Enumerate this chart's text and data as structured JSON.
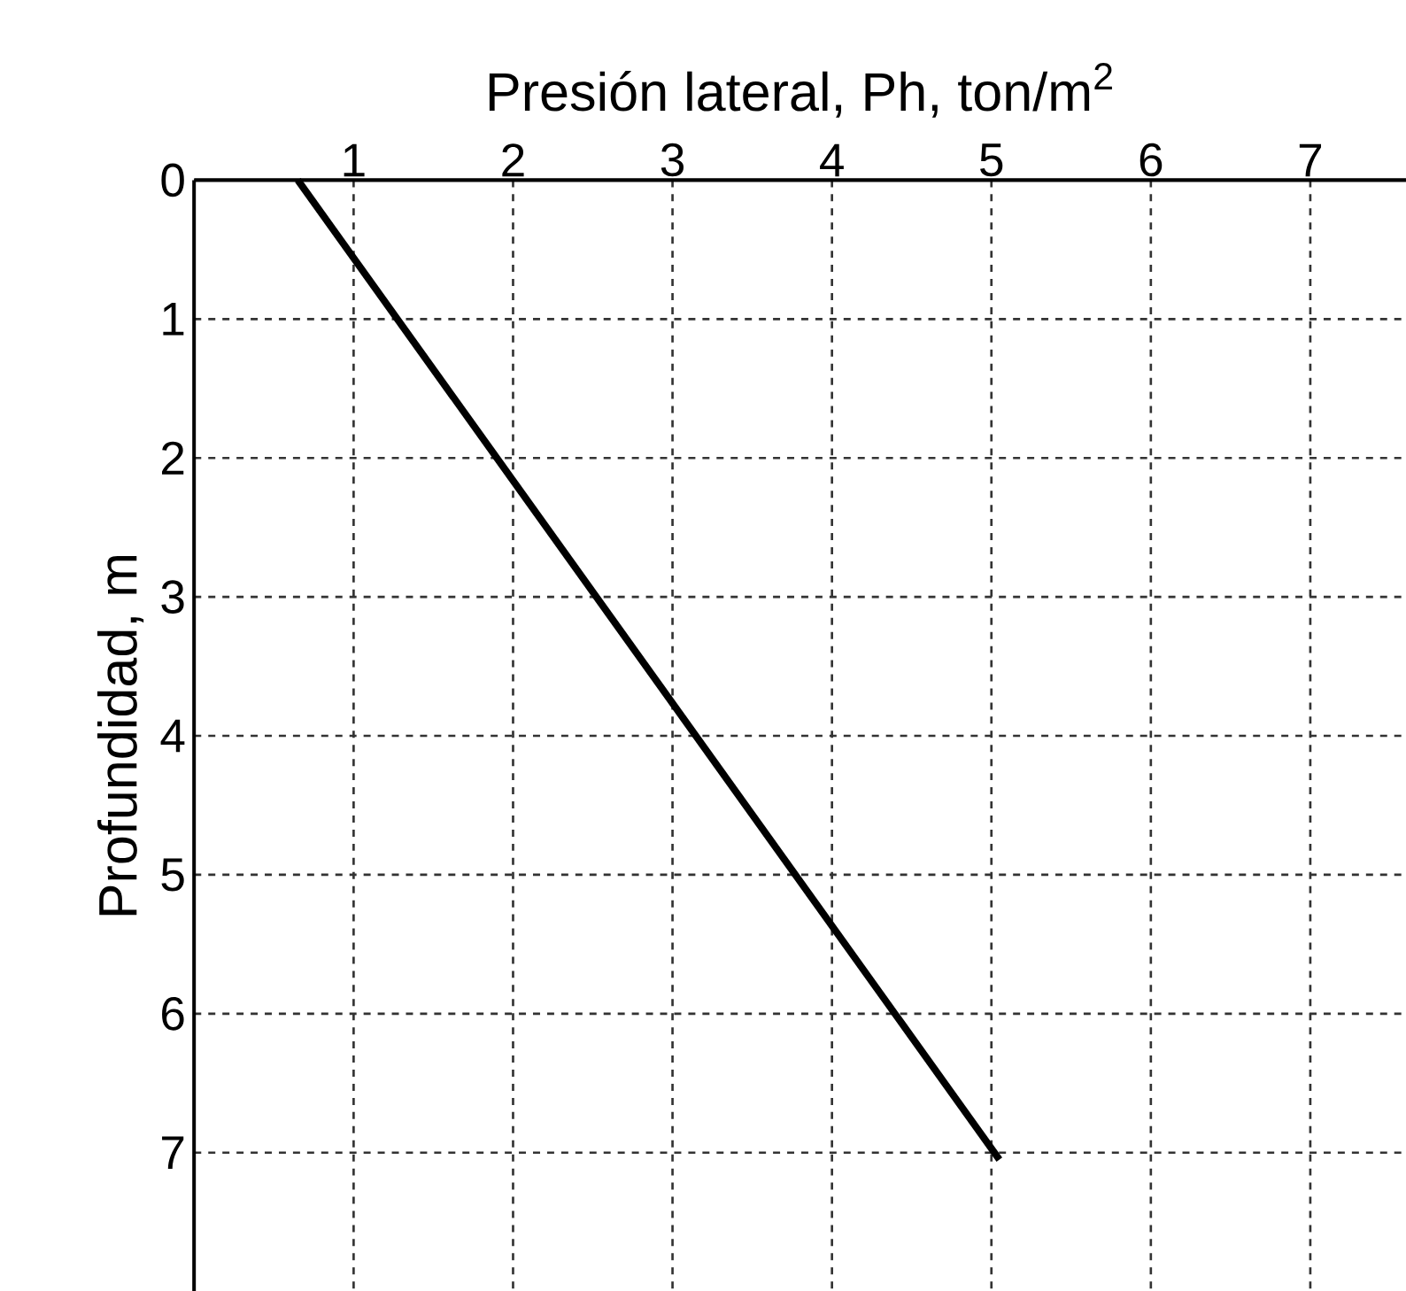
{
  "chart_data": {
    "type": "line",
    "xlabel": "Presión lateral, Ph, ton/m$^{2}$",
    "ylabel": "Profundidad, m",
    "x": [
      0.65,
      5.05
    ],
    "series": [
      {
        "color": "#000000",
        "values": [
          0,
          7.05
        ]
      }
    ],
    "xlim": [
      0,
      7.6
    ],
    "ylim": [
      8,
      0
    ],
    "xticks": [
      1,
      2,
      3,
      4,
      5,
      6,
      7
    ],
    "yticks": [
      0,
      1,
      2,
      3,
      4,
      5,
      6,
      7
    ],
    "grid": true,
    "line_style": "solid",
    "marker": "none"
  }
}
